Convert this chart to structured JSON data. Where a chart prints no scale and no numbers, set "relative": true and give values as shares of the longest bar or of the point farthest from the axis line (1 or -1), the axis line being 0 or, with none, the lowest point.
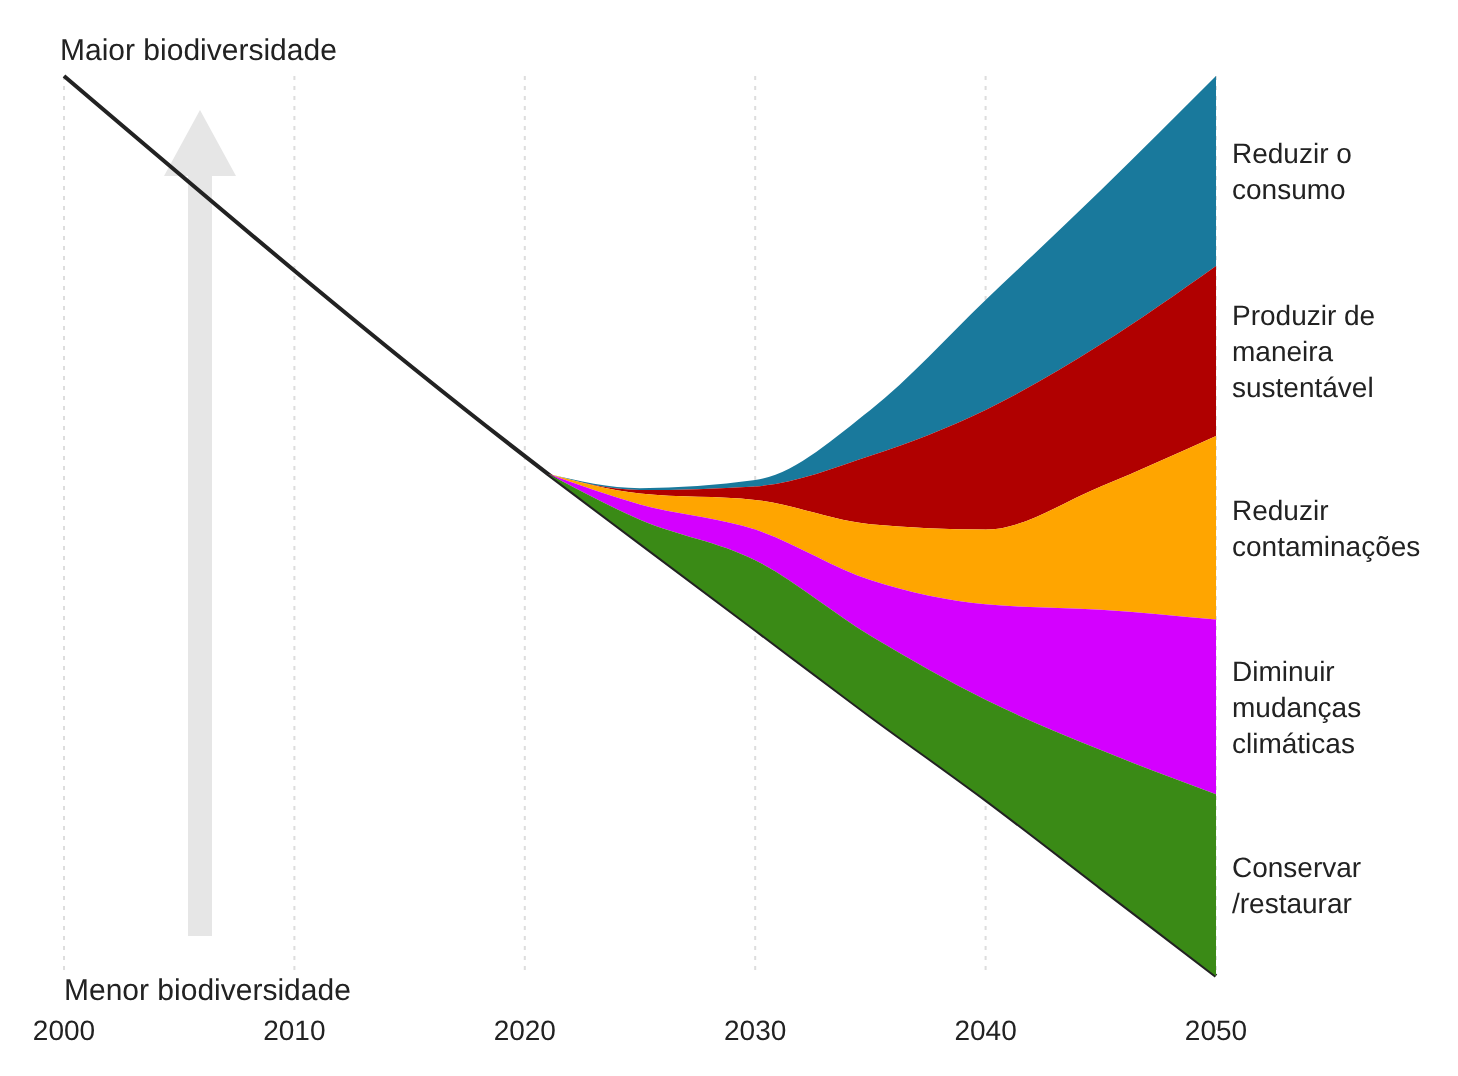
{
  "chart_data": {
    "type": "area",
    "relative": true,
    "xlim": [
      2000,
      2050
    ],
    "xticks": [
      2000,
      2010,
      2020,
      2030,
      2040,
      2050
    ],
    "grid": "x",
    "annotations": [
      "Maior biodiversidade",
      "Menor biodiversidade"
    ],
    "series": [
      {
        "type": "line",
        "color": "#222222",
        "x": [
          2000,
          2021,
          2025,
          2030,
          2035,
          2040,
          2045,
          2050
        ],
        "values": [
          1.0,
          0.558,
          0.481,
          0.385,
          0.289,
          0.196,
          0.098,
          0
        ]
      },
      {
        "name": "Reduzir o consumo",
        "color": "#19799c",
        "x": [
          2021,
          2025,
          2030,
          2035,
          2040,
          2045,
          2050
        ],
        "values": [
          0.558,
          0.542,
          0.551,
          0.629,
          0.751,
          0.873,
          1.0
        ]
      },
      {
        "name": "Produzir de maneira sustentável",
        "color": "#b00000",
        "x": [
          2021,
          2025,
          2030,
          2035,
          2040,
          2045,
          2050
        ],
        "values": [
          0.558,
          0.54,
          0.544,
          0.578,
          0.629,
          0.702,
          0.789
        ]
      },
      {
        "name": "Reduzir contaminações",
        "color": "#ffa500",
        "x": [
          2021,
          2025,
          2030,
          2035,
          2040,
          2045,
          2050
        ],
        "values": [
          0.558,
          0.536,
          0.529,
          0.502,
          0.496,
          0.544,
          0.6
        ]
      },
      {
        "name": "Diminuir mudanças climáticas",
        "color": "#d400ff",
        "x": [
          2021,
          2025,
          2030,
          2035,
          2040,
          2045,
          2050
        ],
        "values": [
          0.558,
          0.524,
          0.496,
          0.44,
          0.413,
          0.407,
          0.396
        ]
      },
      {
        "name": "Conservar /restaurar",
        "color": "#3a8a16",
        "x": [
          2021,
          2025,
          2030,
          2035,
          2040,
          2045,
          2050
        ],
        "values": [
          0.558,
          0.507,
          0.462,
          0.378,
          0.307,
          0.251,
          0.202
        ]
      }
    ]
  }
}
